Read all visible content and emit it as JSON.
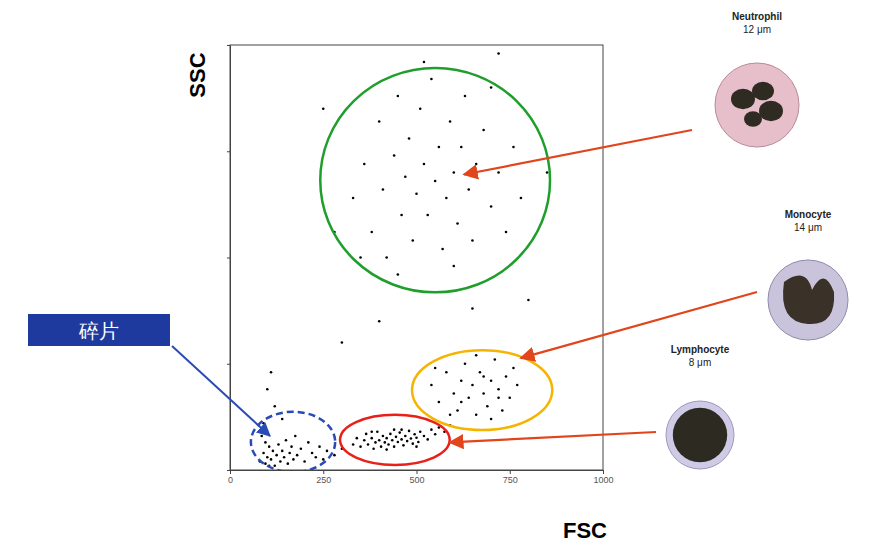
{
  "chart_data": {
    "type": "scatter",
    "x_label": "FSC",
    "y_label": "SSC",
    "xlim": [
      0,
      1000
    ],
    "ylim": [
      0,
      1000
    ],
    "xticks": [
      0,
      250,
      500,
      750,
      1000
    ],
    "yticks": [
      0,
      250,
      500,
      750,
      1000
    ],
    "tick_labels": "x",
    "grid": false,
    "series": [
      {
        "color": "#000000",
        "marker": "dot",
        "x": [
          330,
          360,
          380,
          400,
          410,
          420,
          440,
          450,
          460,
          470,
          480,
          490,
          500,
          510,
          520,
          530,
          540,
          550,
          560,
          570,
          580,
          590,
          600,
          610,
          620,
          630,
          640,
          650,
          660,
          680,
          700,
          720,
          740,
          760,
          780,
          450,
          600,
          700,
          350,
          520,
          300,
          250,
          800,
          650,
          400,
          850,
          720,
          280
        ],
        "values": [
          640,
          720,
          560,
          820,
          660,
          500,
          740,
          880,
          600,
          690,
          780,
          540,
          650,
          850,
          720,
          600,
          920,
          680,
          760,
          520,
          640,
          820,
          700,
          580,
          760,
          880,
          660,
          540,
          720,
          800,
          620,
          700,
          560,
          760,
          640,
          460,
          480,
          900,
          500,
          960,
          300,
          850,
          400,
          380,
          350,
          700,
          980,
          560
        ]
      },
      {
        "color": "#000000",
        "marker": "dot",
        "x": [
          540,
          560,
          580,
          600,
          610,
          620,
          630,
          640,
          650,
          660,
          670,
          680,
          690,
          700,
          710,
          720,
          730,
          740,
          750,
          770,
          590,
          660,
          700,
          620,
          680,
          760,
          550,
          720
        ],
        "values": [
          200,
          160,
          230,
          180,
          140,
          210,
          250,
          170,
          200,
          130,
          230,
          180,
          150,
          210,
          260,
          190,
          140,
          220,
          170,
          200,
          130,
          270,
          120,
          160,
          220,
          240,
          240,
          170
        ]
      },
      {
        "color": "#000000",
        "marker": "dot",
        "x": [
          330,
          340,
          350,
          360,
          365,
          370,
          380,
          385,
          390,
          395,
          400,
          405,
          410,
          415,
          420,
          425,
          430,
          435,
          440,
          445,
          450,
          455,
          460,
          465,
          470,
          475,
          480,
          485,
          490,
          495,
          500,
          505,
          510,
          520,
          530,
          540,
          550,
          560,
          575,
          590,
          380,
          420,
          460,
          500,
          440
        ],
        "values": [
          60,
          75,
          55,
          70,
          85,
          60,
          75,
          50,
          65,
          90,
          70,
          55,
          80,
          65,
          75,
          60,
          85,
          70,
          55,
          78,
          66,
          88,
          72,
          58,
          80,
          68,
          92,
          74,
          62,
          84,
          76,
          66,
          90,
          80,
          72,
          95,
          84,
          100,
          90,
          105,
          90,
          48,
          95,
          55,
          95
        ]
      },
      {
        "color": "#000000",
        "marker": "dot",
        "x": [
          80,
          90,
          95,
          100,
          105,
          110,
          115,
          120,
          125,
          130,
          135,
          140,
          145,
          150,
          155,
          160,
          165,
          170,
          175,
          180,
          190,
          200,
          210,
          220,
          230,
          240,
          250,
          260,
          280,
          300,
          90,
          120,
          100,
          140,
          110,
          85,
          95,
          105
        ],
        "values": [
          20,
          40,
          15,
          30,
          55,
          25,
          45,
          10,
          35,
          60,
          20,
          45,
          30,
          70,
          15,
          40,
          55,
          25,
          80,
          35,
          50,
          20,
          65,
          40,
          30,
          55,
          25,
          45,
          35,
          50,
          110,
          150,
          190,
          120,
          230,
          80,
          65,
          10
        ]
      }
    ],
    "gates": [
      {
        "label": "Neutrophil",
        "size_label": "12 μm",
        "color": "#1f9e2c",
        "line_style": "solid",
        "cx": 550,
        "cy": 682,
        "rx": 308,
        "ry": 264
      },
      {
        "label": "Monocyte",
        "size_label": "14 μm",
        "color": "#f5b400",
        "line_style": "solid",
        "cx": 676,
        "cy": 188,
        "rx": 188,
        "ry": 94
      },
      {
        "label": "Lymphocyte",
        "size_label": "8 μm",
        "color": "#e8201a",
        "line_style": "solid",
        "cx": 442,
        "cy": 71,
        "rx": 147,
        "ry": 59
      },
      {
        "label": "碎片",
        "color": "#2a4bb5",
        "line_style": "dashed",
        "cx": 169,
        "cy": 66,
        "rx": 113,
        "ry": 71
      }
    ]
  }
}
